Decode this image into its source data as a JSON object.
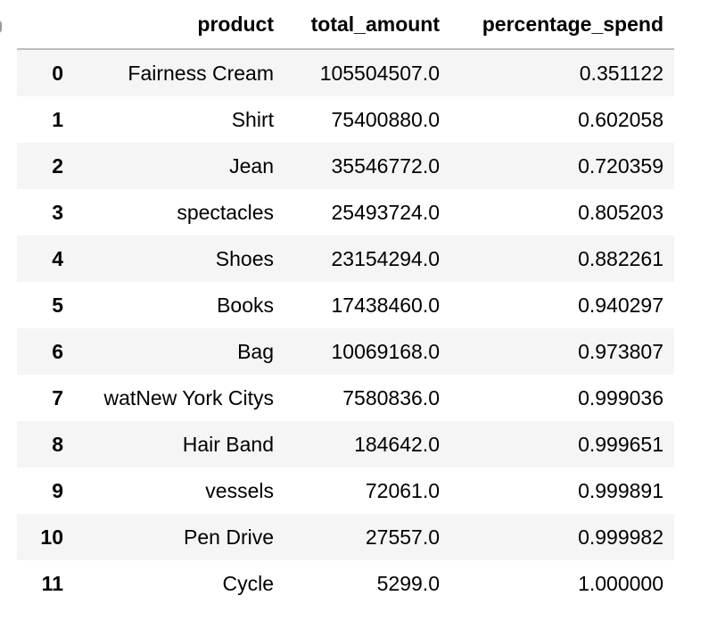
{
  "table": {
    "columns": [
      "product",
      "total_amount",
      "percentage_spend"
    ],
    "rows": [
      {
        "index": "0",
        "product": "Fairness Cream",
        "total_amount": "105504507.0",
        "percentage_spend": "0.351122"
      },
      {
        "index": "1",
        "product": "Shirt",
        "total_amount": "75400880.0",
        "percentage_spend": "0.602058"
      },
      {
        "index": "2",
        "product": "Jean",
        "total_amount": "35546772.0",
        "percentage_spend": "0.720359"
      },
      {
        "index": "3",
        "product": "spectacles",
        "total_amount": "25493724.0",
        "percentage_spend": "0.805203"
      },
      {
        "index": "4",
        "product": "Shoes",
        "total_amount": "23154294.0",
        "percentage_spend": "0.882261"
      },
      {
        "index": "5",
        "product": "Books",
        "total_amount": "17438460.0",
        "percentage_spend": "0.940297"
      },
      {
        "index": "6",
        "product": "Bag",
        "total_amount": "10069168.0",
        "percentage_spend": "0.973807"
      },
      {
        "index": "7",
        "product": "watNew York Citys",
        "total_amount": "7580836.0",
        "percentage_spend": "0.999036"
      },
      {
        "index": "8",
        "product": "Hair Band",
        "total_amount": "184642.0",
        "percentage_spend": "0.999651"
      },
      {
        "index": "9",
        "product": "vessels",
        "total_amount": "72061.0",
        "percentage_spend": "0.999891"
      },
      {
        "index": "10",
        "product": "Pen Drive",
        "total_amount": "27557.0",
        "percentage_spend": "0.999982"
      },
      {
        "index": "11",
        "product": "Cycle",
        "total_amount": "5299.0",
        "percentage_spend": "1.000000"
      }
    ]
  }
}
